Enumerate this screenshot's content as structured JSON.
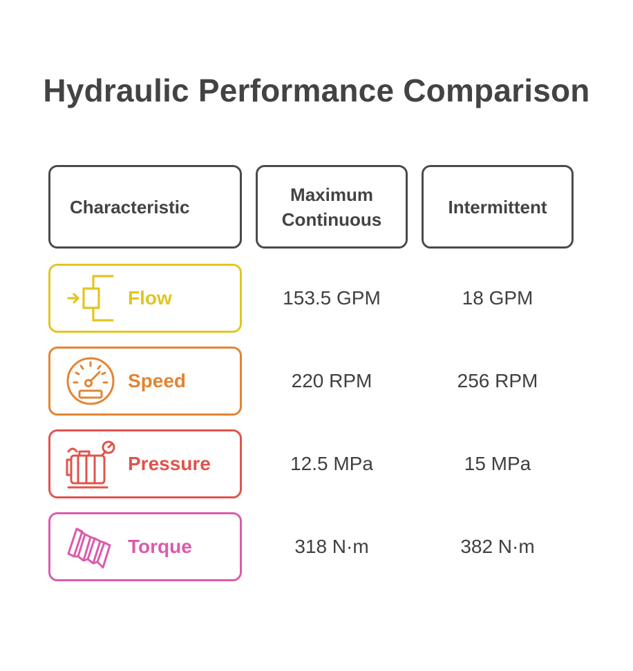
{
  "title": "Hydraulic Performance Comparison",
  "headers": {
    "characteristic": "Characteristic",
    "max_continuous": "Maximum\nContinuous",
    "intermittent": "Intermittent"
  },
  "rows": [
    {
      "label": "Flow",
      "icon": "flow-icon",
      "color": "#e2c521",
      "max_continuous": "153.5 GPM",
      "intermittent": "18 GPM"
    },
    {
      "label": "Speed",
      "icon": "speedometer-icon",
      "color": "#e38432",
      "max_continuous": "220 RPM",
      "intermittent": "256 RPM"
    },
    {
      "label": "Pressure",
      "icon": "pressure-gauge-icon",
      "color": "#e0534b",
      "max_continuous": "12.5 MPa",
      "intermittent": "15 MPa"
    },
    {
      "label": "Torque",
      "icon": "torque-spring-icon",
      "color": "#dc5aac",
      "max_continuous": "318 N·m",
      "intermittent": "382 N·m"
    }
  ]
}
